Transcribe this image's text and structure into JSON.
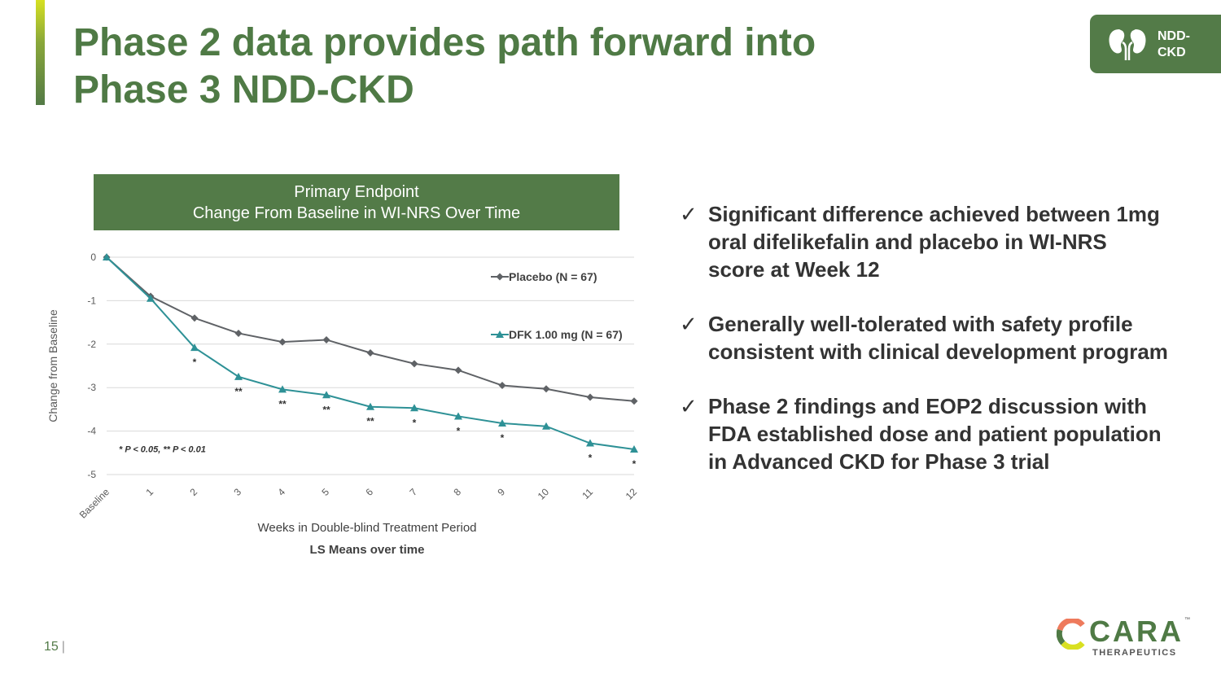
{
  "title_lines": [
    "Phase 2 data provides path forward into",
    "Phase 3 NDD-CKD"
  ],
  "badge": {
    "line1": "NDD-",
    "line2": "CKD",
    "icon": "kidneys-icon"
  },
  "chart_header": {
    "line1": "Primary Endpoint",
    "line2": "Change From Baseline in WI-NRS Over Time"
  },
  "chart_data": {
    "type": "line",
    "title": "LS Means over time",
    "xlabel": "Weeks in Double-blind Treatment Period",
    "ylabel": "Change from Baseline",
    "categories": [
      "Baseline",
      "1",
      "2",
      "3",
      "4",
      "5",
      "6",
      "7",
      "8",
      "9",
      "10",
      "11",
      "12"
    ],
    "ylim": [
      -5,
      0
    ],
    "yticks": [
      "0",
      "-1",
      "-2",
      "-3",
      "-4",
      "-5"
    ],
    "grid": true,
    "legend_position": "right",
    "series": [
      {
        "name": "Placebo (N = 67)",
        "color": "#5f6266",
        "marker": "diamond",
        "values": [
          0,
          -0.9,
          -1.4,
          -1.75,
          -1.95,
          -1.9,
          -2.2,
          -2.45,
          -2.6,
          -2.95,
          -3.03,
          -3.22,
          -3.31
        ]
      },
      {
        "name": "DFK 1.00 mg (N = 67)",
        "color": "#2e9196",
        "marker": "triangle",
        "values": [
          0,
          -0.95,
          -2.08,
          -2.75,
          -3.04,
          -3.17,
          -3.44,
          -3.47,
          -3.66,
          -3.82,
          -3.89,
          -4.28,
          -4.42
        ],
        "significance": [
          "",
          "",
          "*",
          "**",
          "**",
          "**",
          "**",
          "*",
          "*",
          "*",
          "",
          "*",
          "*"
        ]
      }
    ],
    "footnote": "* P < 0.05, ** P < 0.01"
  },
  "bullets": [
    "Significant difference achieved between 1mg oral difelikefalin and placebo in WI-NRS score at Week 12",
    "Generally well-tolerated with safety profile consistent with clinical development program",
    "Phase 2 findings and EOP2 discussion with FDA established dose and patient population in Advanced CKD for Phase 3 trial"
  ],
  "check_glyph": "✓",
  "page_number": "15",
  "logo": {
    "name": "CARA",
    "sub": "THERAPEUTICS",
    "tm": "™"
  }
}
